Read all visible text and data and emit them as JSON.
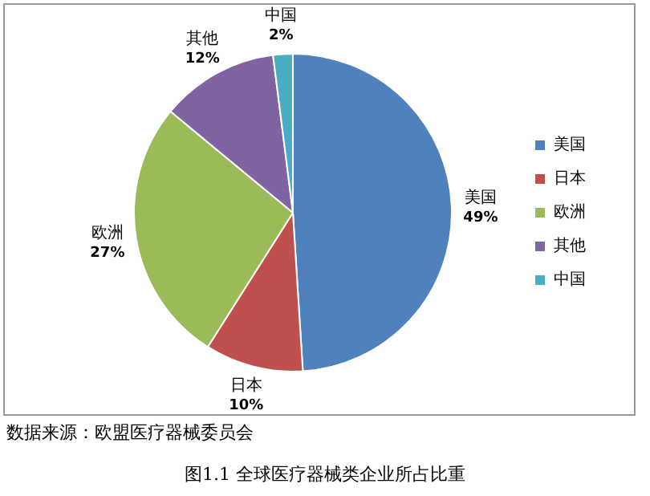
{
  "chart_data": {
    "type": "pie",
    "title": "图1.1  全球医疗器械类企业所占比重",
    "categories": [
      "美国",
      "日本",
      "欧洲",
      "其他",
      "中国"
    ],
    "values": [
      49,
      10,
      27,
      12,
      2
    ],
    "value_labels": [
      "49%",
      "10%",
      "27%",
      "12%",
      "2%"
    ],
    "colors": [
      "#4f81bd",
      "#c0504d",
      "#9bbb59",
      "#8064a2",
      "#4bacc6"
    ],
    "legend": "right",
    "annotations": [
      "数据来源：欧盟医疗器械委员会"
    ]
  }
}
